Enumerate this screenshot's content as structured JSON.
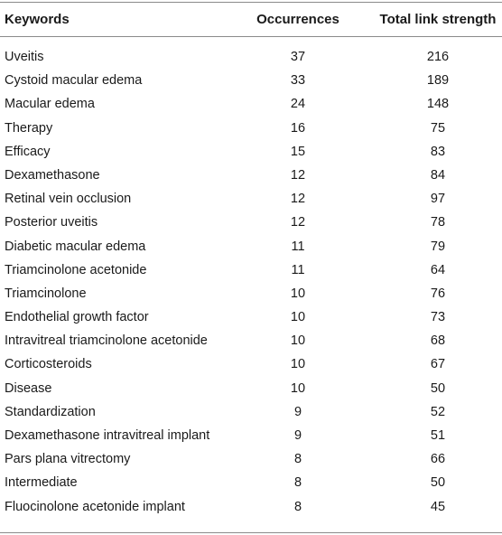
{
  "table": {
    "headers": {
      "keyword": "Keywords",
      "occurrences": "Occurrences",
      "total_link_strength": "Total link strength"
    },
    "rows": [
      {
        "keyword": "Uveitis",
        "occurrences": "37",
        "total_link_strength": "216"
      },
      {
        "keyword": "Cystoid macular edema",
        "occurrences": "33",
        "total_link_strength": "189"
      },
      {
        "keyword": "Macular edema",
        "occurrences": "24",
        "total_link_strength": "148"
      },
      {
        "keyword": "Therapy",
        "occurrences": "16",
        "total_link_strength": "75"
      },
      {
        "keyword": "Efficacy",
        "occurrences": "15",
        "total_link_strength": "83"
      },
      {
        "keyword": "Dexamethasone",
        "occurrences": "12",
        "total_link_strength": "84"
      },
      {
        "keyword": "Retinal vein occlusion",
        "occurrences": "12",
        "total_link_strength": "97"
      },
      {
        "keyword": "Posterior uveitis",
        "occurrences": "12",
        "total_link_strength": "78"
      },
      {
        "keyword": "Diabetic macular edema",
        "occurrences": "11",
        "total_link_strength": "79"
      },
      {
        "keyword": "Triamcinolone acetonide",
        "occurrences": "11",
        "total_link_strength": "64"
      },
      {
        "keyword": "Triamcinolone",
        "occurrences": "10",
        "total_link_strength": "76"
      },
      {
        "keyword": "Endothelial growth factor",
        "occurrences": "10",
        "total_link_strength": "73"
      },
      {
        "keyword": "Intravitreal triamcinolone acetonide",
        "occurrences": "10",
        "total_link_strength": "68"
      },
      {
        "keyword": "Corticosteroids",
        "occurrences": "10",
        "total_link_strength": "67"
      },
      {
        "keyword": "Disease",
        "occurrences": "10",
        "total_link_strength": "50"
      },
      {
        "keyword": "Standardization",
        "occurrences": "9",
        "total_link_strength": "52"
      },
      {
        "keyword": "Dexamethasone intravitreal implant",
        "occurrences": "9",
        "total_link_strength": "51"
      },
      {
        "keyword": "Pars plana vitrectomy",
        "occurrences": "8",
        "total_link_strength": "66"
      },
      {
        "keyword": "Intermediate",
        "occurrences": "8",
        "total_link_strength": "50"
      },
      {
        "keyword": "Fluocinolone acetonide implant",
        "occurrences": "8",
        "total_link_strength": "45"
      }
    ]
  }
}
